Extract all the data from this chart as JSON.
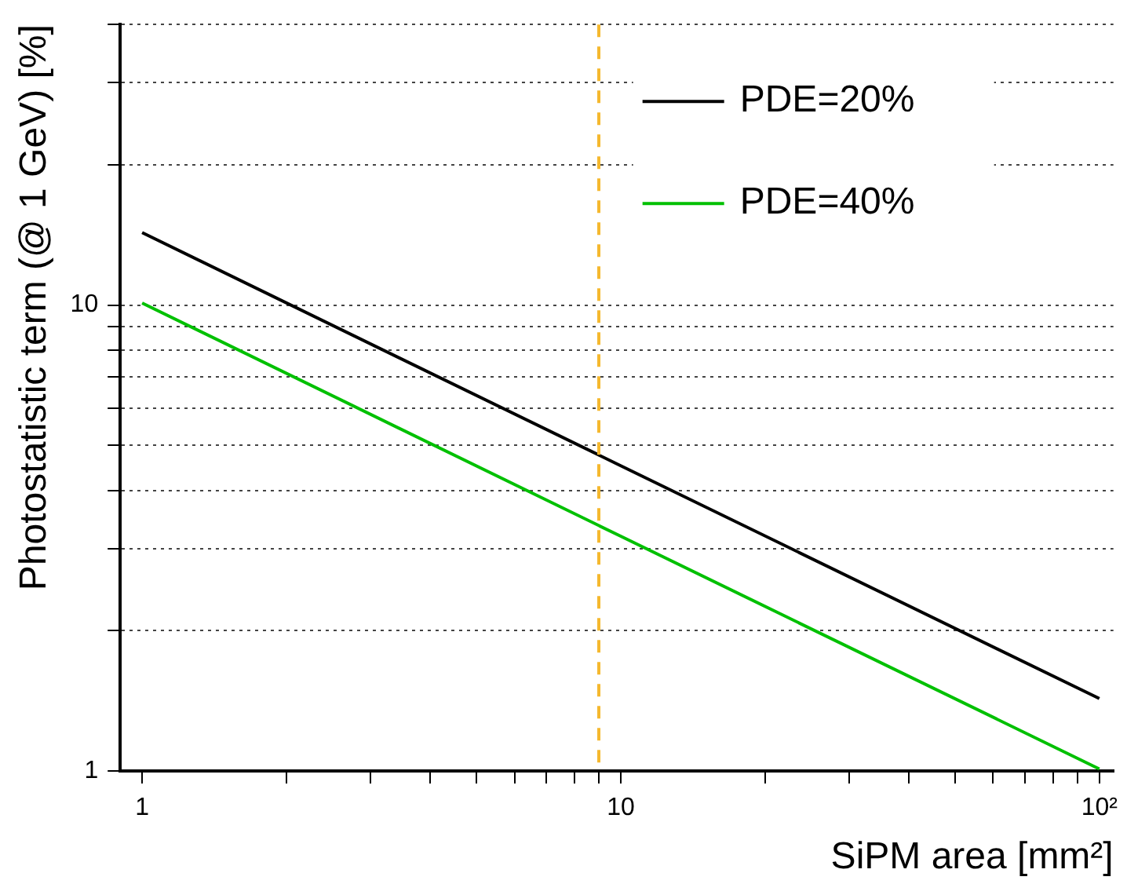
{
  "chart_data": {
    "type": "line",
    "xlabel": "SiPM area [mm²]",
    "ylabel": "Photostatistic term (@ 1 GeV) [%]",
    "x": [
      1,
      10,
      100
    ],
    "series": [
      {
        "name": "PDE=20%",
        "color": "#000000",
        "values": [
          14.3,
          4.52,
          1.43
        ]
      },
      {
        "name": "PDE=40%",
        "color": "#00c000",
        "values": [
          10.1,
          3.19,
          1.01
        ]
      }
    ],
    "log": "xy",
    "xlim": [
      0.9,
      107
    ],
    "ylim": [
      1,
      40
    ],
    "xticks": [
      1,
      {
        "value": 2,
        "label": null
      },
      {
        "value": 3,
        "label": null
      },
      {
        "value": 4,
        "label": null
      },
      {
        "value": 5,
        "label": null
      },
      {
        "value": 6,
        "label": null
      },
      {
        "value": 7,
        "label": null
      },
      {
        "value": 8,
        "label": null
      },
      {
        "value": 9,
        "label": null
      },
      10,
      {
        "value": 20,
        "label": null
      },
      {
        "value": 30,
        "label": null
      },
      {
        "value": 40,
        "label": null
      },
      {
        "value": 50,
        "label": null
      },
      {
        "value": 60,
        "label": null
      },
      {
        "value": 70,
        "label": null
      },
      {
        "value": 80,
        "label": null
      },
      {
        "value": 90,
        "label": null
      },
      {
        "value": 100,
        "label": "10²"
      }
    ],
    "yticks": [
      1,
      {
        "value": 2,
        "label": null
      },
      {
        "value": 3,
        "label": null
      },
      {
        "value": 4,
        "label": null
      },
      {
        "value": 5,
        "label": null
      },
      {
        "value": 6,
        "label": null
      },
      {
        "value": 7,
        "label": null
      },
      {
        "value": 8,
        "label": null
      },
      {
        "value": 9,
        "label": null
      },
      10,
      {
        "value": 20,
        "label": null
      },
      {
        "value": 30,
        "label": null
      },
      {
        "value": 40,
        "label": null
      }
    ],
    "ref_lines": [
      {
        "axis": "x",
        "value": 9,
        "color": "#f5b82e",
        "line_style": "dashed"
      }
    ],
    "grid": "y",
    "legend": "top right",
    "marker": "none",
    "line_style": "solid"
  }
}
